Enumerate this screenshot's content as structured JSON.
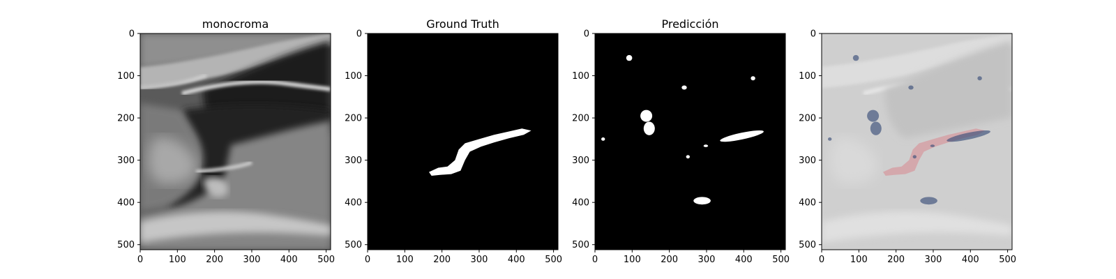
{
  "figure": {
    "panels": [
      {
        "title": "monocroma",
        "kind": "grayscale-ultrasound"
      },
      {
        "title": "Ground Truth",
        "kind": "binary-mask"
      },
      {
        "title": "Predicción",
        "kind": "binary-mask"
      },
      {
        "title": "",
        "kind": "overlay"
      }
    ],
    "x_ticks": [
      "0",
      "100",
      "200",
      "300",
      "400",
      "500"
    ],
    "y_ticks": [
      "0",
      "100",
      "200",
      "300",
      "400",
      "500"
    ],
    "axis_range": {
      "x": [
        0,
        512
      ],
      "y": [
        0,
        512
      ]
    },
    "colors": {
      "mask_fg": "#ffffff",
      "mask_bg": "#000000",
      "overlay_truth": "#d9898f",
      "overlay_pred": "#3b4f7a"
    }
  }
}
